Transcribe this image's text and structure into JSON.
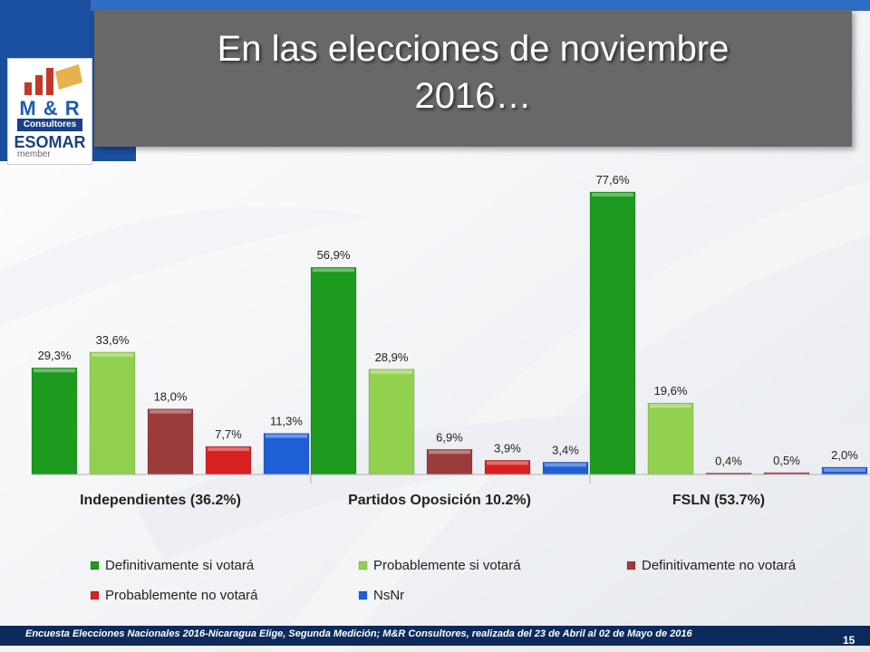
{
  "slide": {
    "title_line1": "En las elecciones de noviembre",
    "title_line2": "2016…",
    "footer": "Encuesta Elecciones Nacionales 2016-Nicaragua Elige, Segunda Medición; M&R Consultores, realizada del 23 de Abril al 02 de Mayo de 2016",
    "page_number": "15"
  },
  "logo": {
    "mark": "M & R",
    "consultores": "Consultores",
    "esomar": "ESOMAR",
    "member": "member"
  },
  "colors": {
    "title_box": "#686868",
    "footer_bar": "#0d2a5c",
    "series": [
      "#1e9a1e",
      "#92d050",
      "#9b3b3b",
      "#d82020",
      "#1f5fd6"
    ]
  },
  "chart_data": {
    "type": "bar",
    "categories": [
      "Independientes (36.2%)",
      "Partidos Oposición  10.2%)",
      "FSLN (53.7%)"
    ],
    "series": [
      {
        "name": "Definitivamente si votará",
        "values": [
          29.3,
          56.9,
          77.6
        ],
        "labels": [
          "29,3%",
          "56,9%",
          "77,6%"
        ]
      },
      {
        "name": "Probablemente si votará",
        "values": [
          33.6,
          28.9,
          19.6
        ],
        "labels": [
          "33,6%",
          "28,9%",
          "19,6%"
        ]
      },
      {
        "name": "Definitivamente no votará",
        "values": [
          18.0,
          6.9,
          0.4
        ],
        "labels": [
          "18,0%",
          "6,9%",
          "0,4%"
        ]
      },
      {
        "name": "Probablemente no votará",
        "values": [
          7.7,
          3.9,
          0.5
        ],
        "labels": [
          "7,7%",
          "3,9%",
          "0,5%"
        ]
      },
      {
        "name": "NsNr",
        "values": [
          11.3,
          3.4,
          2.0
        ],
        "labels": [
          "11,3%",
          "3,4%",
          "2,0%"
        ]
      }
    ],
    "ylim": [
      0,
      80
    ],
    "grid": false,
    "legend_position": "bottom"
  }
}
